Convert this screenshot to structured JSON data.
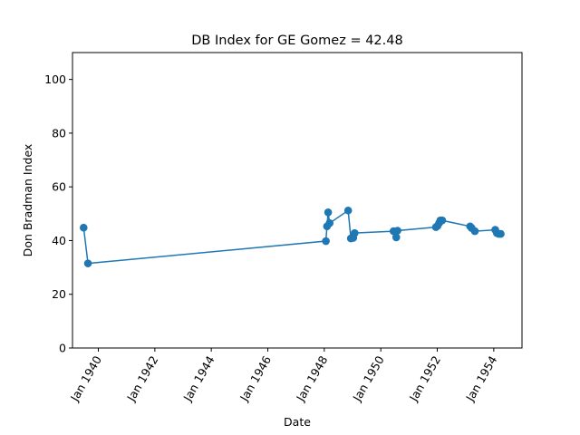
{
  "chart_data": {
    "type": "line",
    "title": "DB Index for GE Gomez = 42.48",
    "xlabel": "Date",
    "ylabel": "Don Bradman Index",
    "ylim": [
      0,
      110
    ],
    "xlim": [
      "1939-02-01",
      "1955-01-01"
    ],
    "yticks": [
      0,
      20,
      40,
      60,
      80,
      100
    ],
    "xticks": [
      {
        "date": "1940-01-01",
        "label": "Jan 1940"
      },
      {
        "date": "1942-01-01",
        "label": "Jan 1942"
      },
      {
        "date": "1944-01-01",
        "label": "Jan 1944"
      },
      {
        "date": "1946-01-01",
        "label": "Jan 1946"
      },
      {
        "date": "1948-01-01",
        "label": "Jan 1948"
      },
      {
        "date": "1950-01-01",
        "label": "Jan 1950"
      },
      {
        "date": "1952-01-01",
        "label": "Jan 1952"
      },
      {
        "date": "1954-01-01",
        "label": "Jan 1954"
      }
    ],
    "series": [
      {
        "color": "#1f77b4",
        "points": [
          {
            "x": "1939-06-25",
            "y": 44.8
          },
          {
            "x": "1939-08-20",
            "y": 31.5
          },
          {
            "x": "1948-01-22",
            "y": 39.8
          },
          {
            "x": "1948-02-05",
            "y": 45.3
          },
          {
            "x": "1948-02-20",
            "y": 50.5
          },
          {
            "x": "1948-03-10",
            "y": 46.5
          },
          {
            "x": "1948-11-05",
            "y": 51.2
          },
          {
            "x": "1948-12-10",
            "y": 40.8
          },
          {
            "x": "1949-01-10",
            "y": 41.0
          },
          {
            "x": "1949-01-28",
            "y": 42.8
          },
          {
            "x": "1950-06-15",
            "y": 43.5
          },
          {
            "x": "1950-07-05",
            "y": 43.2
          },
          {
            "x": "1950-07-20",
            "y": 41.2
          },
          {
            "x": "1950-08-05",
            "y": 43.7
          },
          {
            "x": "1951-12-15",
            "y": 45.0
          },
          {
            "x": "1952-01-05",
            "y": 45.5
          },
          {
            "x": "1952-01-25",
            "y": 46.5
          },
          {
            "x": "1952-02-10",
            "y": 47.5
          },
          {
            "x": "1952-03-05",
            "y": 47.5
          },
          {
            "x": "1953-03-01",
            "y": 45.3
          },
          {
            "x": "1953-03-20",
            "y": 44.7
          },
          {
            "x": "1953-05-01",
            "y": 43.5
          },
          {
            "x": "1954-01-20",
            "y": 44.0
          },
          {
            "x": "1954-02-10",
            "y": 42.8
          },
          {
            "x": "1954-03-05",
            "y": 42.5
          },
          {
            "x": "1954-04-01",
            "y": 42.48
          }
        ]
      }
    ]
  }
}
